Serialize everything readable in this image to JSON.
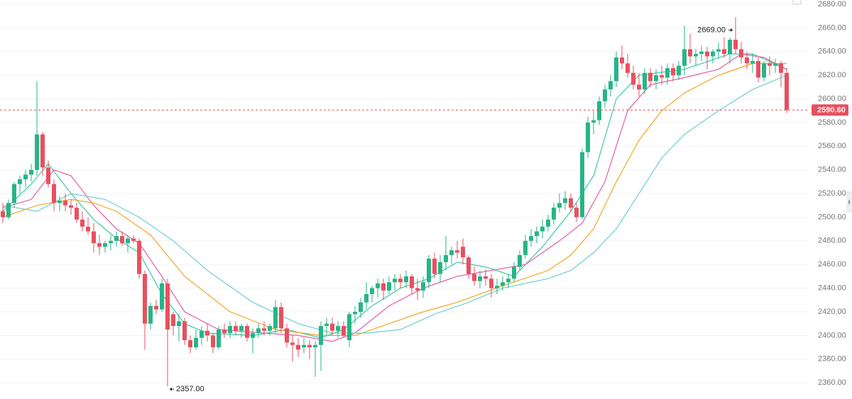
{
  "chart_data": {
    "type": "candlestick",
    "up_color": "#26b587",
    "down_color": "#e8505f",
    "grid": true,
    "ylim": [
      2346.3,
      2683.6
    ],
    "yticks": [
      {
        "value": 2360,
        "label": "2360.00"
      },
      {
        "value": 2380,
        "label": "2380.00"
      },
      {
        "value": 2400,
        "label": "2400.00"
      },
      {
        "value": 2420,
        "label": "2420.00"
      },
      {
        "value": 2440,
        "label": "2440.00"
      },
      {
        "value": 2460,
        "label": "2460.00"
      },
      {
        "value": 2480,
        "label": "2480.00"
      },
      {
        "value": 2500,
        "label": "2500.00"
      },
      {
        "value": 2520,
        "label": "2520.00"
      },
      {
        "value": 2540,
        "label": "2540.00"
      },
      {
        "value": 2560,
        "label": "2560.00"
      },
      {
        "value": 2580,
        "label": "2580.00"
      },
      {
        "value": 2600,
        "label": "2600.00"
      },
      {
        "value": 2620,
        "label": "2620.00"
      },
      {
        "value": 2640,
        "label": "2640.00"
      },
      {
        "value": 2660,
        "label": "2660.00"
      },
      {
        "value": 2680,
        "label": "2680.00"
      }
    ],
    "candles": [
      [
        2505,
        2512,
        2495,
        2500
      ],
      [
        2500,
        2515,
        2498,
        2512
      ],
      [
        2512,
        2530,
        2508,
        2528
      ],
      [
        2528,
        2535,
        2520,
        2532
      ],
      [
        2532,
        2540,
        2525,
        2536
      ],
      [
        2536,
        2545,
        2530,
        2540
      ],
      [
        2540,
        2615,
        2535,
        2570
      ],
      [
        2570,
        2572,
        2535,
        2542
      ],
      [
        2542,
        2548,
        2525,
        2528
      ],
      [
        2528,
        2532,
        2505,
        2512
      ],
      [
        2512,
        2518,
        2505,
        2514
      ],
      [
        2514,
        2520,
        2505,
        2510
      ],
      [
        2510,
        2515,
        2502,
        2508
      ],
      [
        2508,
        2512,
        2495,
        2498
      ],
      [
        2498,
        2505,
        2488,
        2492
      ],
      [
        2492,
        2500,
        2485,
        2488
      ],
      [
        2488,
        2495,
        2470,
        2478
      ],
      [
        2478,
        2485,
        2468,
        2475
      ],
      [
        2475,
        2480,
        2470,
        2478
      ],
      [
        2478,
        2485,
        2472,
        2480
      ],
      [
        2480,
        2488,
        2475,
        2484
      ],
      [
        2484,
        2488,
        2476,
        2478
      ],
      [
        2478,
        2485,
        2470,
        2482
      ],
      [
        2482,
        2485,
        2478,
        2480
      ],
      [
        2480,
        2482,
        2448,
        2452
      ],
      [
        2452,
        2455,
        2388,
        2410
      ],
      [
        2410,
        2428,
        2405,
        2425
      ],
      [
        2425,
        2430,
        2418,
        2422
      ],
      [
        2422,
        2448,
        2420,
        2444
      ],
      [
        2444,
        2448,
        2357,
        2405
      ],
      [
        2418,
        2420,
        2400,
        2408
      ],
      [
        2408,
        2418,
        2395,
        2412
      ],
      [
        2412,
        2415,
        2392,
        2396
      ],
      [
        2396,
        2400,
        2385,
        2390
      ],
      [
        2390,
        2405,
        2388,
        2398
      ],
      [
        2398,
        2408,
        2392,
        2404
      ],
      [
        2404,
        2410,
        2395,
        2400
      ],
      [
        2400,
        2402,
        2385,
        2390
      ],
      [
        2390,
        2408,
        2388,
        2405
      ],
      [
        2405,
        2410,
        2398,
        2402
      ],
      [
        2402,
        2412,
        2398,
        2408
      ],
      [
        2408,
        2412,
        2400,
        2404
      ],
      [
        2404,
        2410,
        2398,
        2408
      ],
      [
        2408,
        2410,
        2395,
        2398
      ],
      [
        2398,
        2406,
        2385,
        2402
      ],
      [
        2402,
        2410,
        2398,
        2406
      ],
      [
        2406,
        2412,
        2400,
        2404
      ],
      [
        2404,
        2410,
        2400,
        2408
      ],
      [
        2406,
        2430,
        2402,
        2424
      ],
      [
        2424,
        2428,
        2402,
        2406
      ],
      [
        2406,
        2410,
        2390,
        2394
      ],
      [
        2394,
        2400,
        2378,
        2392
      ],
      [
        2392,
        2398,
        2382,
        2388
      ],
      [
        2390,
        2398,
        2385,
        2392
      ],
      [
        2392,
        2396,
        2380,
        2390
      ],
      [
        2390,
        2395,
        2365,
        2392
      ],
      [
        2392,
        2412,
        2370,
        2408
      ],
      [
        2408,
        2415,
        2400,
        2410
      ],
      [
        2410,
        2415,
        2400,
        2404
      ],
      [
        2404,
        2412,
        2398,
        2408
      ],
      [
        2408,
        2412,
        2398,
        2400
      ],
      [
        2396,
        2420,
        2390,
        2418
      ],
      [
        2418,
        2425,
        2410,
        2420
      ],
      [
        2420,
        2432,
        2415,
        2428
      ],
      [
        2428,
        2445,
        2422,
        2435
      ],
      [
        2435,
        2442,
        2428,
        2440
      ],
      [
        2440,
        2448,
        2432,
        2444
      ],
      [
        2444,
        2448,
        2430,
        2438
      ],
      [
        2438,
        2450,
        2435,
        2445
      ],
      [
        2445,
        2452,
        2438,
        2448
      ],
      [
        2448,
        2452,
        2440,
        2445
      ],
      [
        2445,
        2455,
        2440,
        2450
      ],
      [
        2450,
        2452,
        2435,
        2440
      ],
      [
        2440,
        2448,
        2430,
        2438
      ],
      [
        2438,
        2450,
        2432,
        2445
      ],
      [
        2445,
        2468,
        2440,
        2465
      ],
      [
        2465,
        2470,
        2448,
        2452
      ],
      [
        2452,
        2468,
        2445,
        2462
      ],
      [
        2462,
        2484,
        2455,
        2468
      ],
      [
        2468,
        2475,
        2460,
        2472
      ],
      [
        2472,
        2480,
        2465,
        2470
      ],
      [
        2475,
        2482,
        2460,
        2466
      ],
      [
        2466,
        2468,
        2448,
        2452
      ],
      [
        2452,
        2458,
        2442,
        2446
      ],
      [
        2446,
        2455,
        2440,
        2450
      ],
      [
        2450,
        2456,
        2442,
        2448
      ],
      [
        2448,
        2452,
        2432,
        2440
      ],
      [
        2440,
        2448,
        2435,
        2442
      ],
      [
        2442,
        2450,
        2438,
        2445
      ],
      [
        2445,
        2452,
        2440,
        2448
      ],
      [
        2448,
        2462,
        2445,
        2458
      ],
      [
        2458,
        2472,
        2455,
        2468
      ],
      [
        2468,
        2485,
        2465,
        2480
      ],
      [
        2480,
        2490,
        2475,
        2484
      ],
      [
        2484,
        2492,
        2478,
        2488
      ],
      [
        2488,
        2498,
        2482,
        2492
      ],
      [
        2492,
        2502,
        2488,
        2498
      ],
      [
        2498,
        2512,
        2494,
        2508
      ],
      [
        2508,
        2520,
        2504,
        2512
      ],
      [
        2512,
        2522,
        2506,
        2516
      ],
      [
        2516,
        2520,
        2504,
        2508
      ],
      [
        2508,
        2512,
        2496,
        2500
      ],
      [
        2500,
        2558,
        2498,
        2555
      ],
      [
        2555,
        2585,
        2550,
        2580
      ],
      [
        2580,
        2590,
        2570,
        2582
      ],
      [
        2582,
        2602,
        2578,
        2598
      ],
      [
        2598,
        2612,
        2592,
        2608
      ],
      [
        2608,
        2620,
        2602,
        2615
      ],
      [
        2615,
        2640,
        2610,
        2635
      ],
      [
        2635,
        2645,
        2625,
        2630
      ],
      [
        2630,
        2638,
        2618,
        2622
      ],
      [
        2622,
        2628,
        2608,
        2612
      ],
      [
        2612,
        2622,
        2602,
        2608
      ],
      [
        2608,
        2626,
        2604,
        2622
      ],
      [
        2622,
        2626,
        2610,
        2615
      ],
      [
        2615,
        2625,
        2608,
        2620
      ],
      [
        2620,
        2628,
        2612,
        2618
      ],
      [
        2618,
        2630,
        2612,
        2626
      ],
      [
        2626,
        2630,
        2615,
        2620
      ],
      [
        2620,
        2632,
        2616,
        2628
      ],
      [
        2628,
        2662,
        2620,
        2642
      ],
      [
        2642,
        2655,
        2630,
        2636
      ],
      [
        2636,
        2642,
        2628,
        2638
      ],
      [
        2638,
        2645,
        2632,
        2640
      ],
      [
        2640,
        2644,
        2625,
        2636
      ],
      [
        2636,
        2642,
        2630,
        2640
      ],
      [
        2640,
        2648,
        2634,
        2642
      ],
      [
        2642,
        2652,
        2635,
        2638
      ],
      [
        2638,
        2652,
        2630,
        2650
      ],
      [
        2650,
        2669,
        2638,
        2642
      ],
      [
        2642,
        2648,
        2630,
        2635
      ],
      [
        2635,
        2640,
        2625,
        2630
      ],
      [
        2630,
        2638,
        2622,
        2632
      ],
      [
        2632,
        2635,
        2614,
        2618
      ],
      [
        2618,
        2632,
        2615,
        2630
      ],
      [
        2630,
        2636,
        2620,
        2628
      ],
      [
        2628,
        2634,
        2622,
        2630
      ],
      [
        2630,
        2632,
        2610,
        2622
      ],
      [
        2622,
        2626,
        2588,
        2590.6
      ]
    ],
    "series": [
      {
        "color": "#3cc9a5",
        "x": [
          0,
          5,
          8,
          12,
          16,
          20,
          24,
          28,
          32,
          36,
          44,
          50,
          56,
          60,
          65,
          70,
          75,
          80,
          85,
          90,
          95,
          100,
          104,
          108,
          112,
          120,
          128,
          132,
          138
        ],
        "values": [
          2505,
          2528,
          2545,
          2520,
          2498,
          2482,
          2470,
          2435,
          2410,
          2402,
          2400,
          2405,
          2398,
          2405,
          2425,
          2440,
          2448,
          2462,
          2458,
          2450,
          2475,
          2505,
          2535,
          2600,
          2620,
          2625,
          2638,
          2638,
          2625
        ]
      },
      {
        "color": "#e25da8",
        "x": [
          0,
          5,
          9,
          12,
          16,
          20,
          24,
          28,
          32,
          38,
          46,
          52,
          58,
          62,
          68,
          74,
          80,
          86,
          92,
          98,
          102,
          106,
          110,
          114,
          120,
          126,
          130,
          134,
          138
        ],
        "values": [
          2508,
          2515,
          2540,
          2535,
          2510,
          2490,
          2478,
          2450,
          2420,
          2405,
          2402,
          2400,
          2395,
          2402,
          2425,
          2440,
          2450,
          2455,
          2460,
          2480,
          2495,
          2530,
          2590,
          2612,
          2618,
          2625,
          2638,
          2635,
          2625
        ]
      },
      {
        "color": "#f5a623",
        "x": [
          0,
          6,
          12,
          16,
          20,
          26,
          32,
          40,
          48,
          56,
          62,
          68,
          74,
          80,
          88,
          96,
          100,
          104,
          108,
          112,
          116,
          120,
          126,
          132,
          138
        ],
        "values": [
          2500,
          2510,
          2515,
          2512,
          2505,
          2485,
          2450,
          2420,
          2405,
          2400,
          2400,
          2410,
          2420,
          2428,
          2442,
          2455,
          2468,
          2490,
          2530,
          2565,
          2590,
          2605,
          2620,
          2630,
          2630
        ]
      },
      {
        "color": "#6ccfd0",
        "x": [
          0,
          6,
          12,
          18,
          24,
          30,
          36,
          44,
          52,
          58,
          64,
          70,
          76,
          82,
          88,
          96,
          100,
          104,
          108,
          112,
          116,
          120,
          126,
          132,
          138
        ],
        "values": [
          2510,
          2505,
          2520,
          2515,
          2500,
          2480,
          2455,
          2428,
          2410,
          2402,
          2402,
          2405,
          2418,
          2428,
          2440,
          2448,
          2455,
          2470,
          2490,
          2520,
          2550,
          2570,
          2590,
          2608,
          2620
        ]
      }
    ],
    "annotations": [
      {
        "candle": 129,
        "value": 2669,
        "label": "2669.00"
      },
      {
        "candle": 29,
        "value": 2357,
        "label": "2357.00"
      }
    ],
    "last_price": {
      "value": 2590.6,
      "label": "2590.60"
    }
  }
}
